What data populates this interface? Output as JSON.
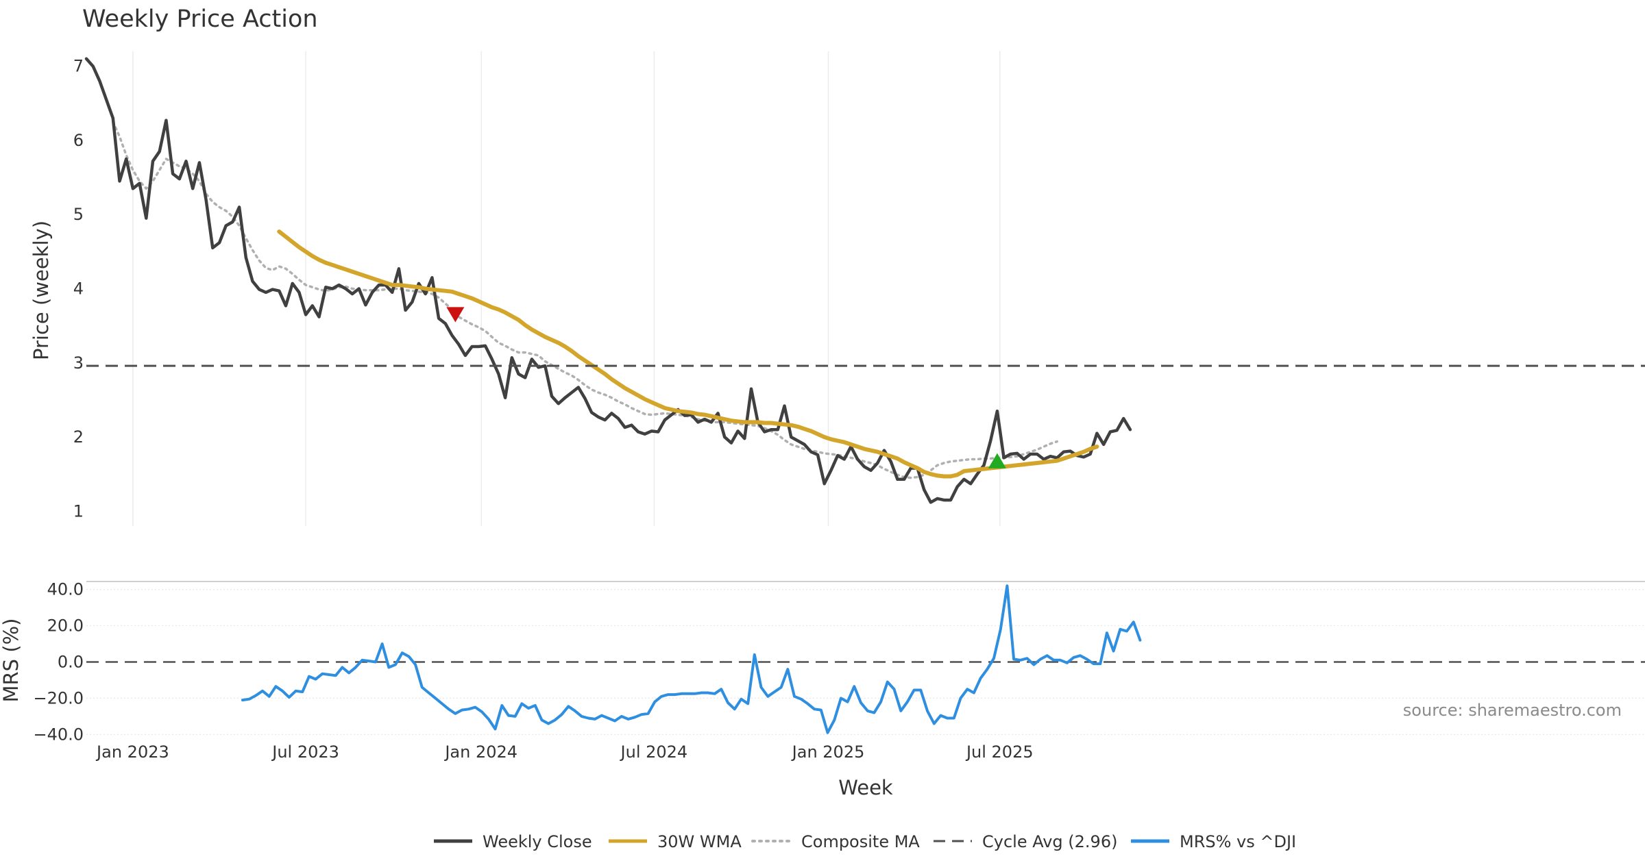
{
  "chart_data": [
    {
      "type": "line",
      "title": "Weekly Price Action",
      "xlabel": "",
      "ylabel": "Price (weekly)",
      "ylim": [
        0.8,
        7.2
      ],
      "yticks": [
        1,
        2,
        3,
        4,
        5,
        6,
        7
      ],
      "grid": true,
      "x_start": "2022-11-14",
      "x_unit": "weeks since x_start",
      "xticks": [
        {
          "label": "Jan 2023",
          "week": 7
        },
        {
          "label": "Jul 2023",
          "week": 33
        },
        {
          "label": "Jan 2024",
          "week": 59.4
        },
        {
          "label": "Jul 2024",
          "week": 85.4
        },
        {
          "label": "Jan 2025",
          "week": 111.6
        },
        {
          "label": "Jul 2025",
          "week": 137.4
        }
      ],
      "reference_line": {
        "name": "Cycle Avg (2.96)",
        "value": 2.96
      },
      "series": [
        {
          "name": "Weekly Close",
          "color": "#404040",
          "start_week": 0,
          "values": [
            7.1,
            7.0,
            6.8,
            6.55,
            6.3,
            5.45,
            5.75,
            5.35,
            5.42,
            4.95,
            5.72,
            5.85,
            6.27,
            5.55,
            5.48,
            5.72,
            5.35,
            5.7,
            5.2,
            4.55,
            4.62,
            4.85,
            4.9,
            5.1,
            4.42,
            4.1,
            3.99,
            3.95,
            3.99,
            3.97,
            3.77,
            4.07,
            3.95,
            3.65,
            3.77,
            3.62,
            4.02,
            4.0,
            4.05,
            4.0,
            3.93,
            4.0,
            3.78,
            3.95,
            4.05,
            4.05,
            3.95,
            4.27,
            3.71,
            3.82,
            4.07,
            3.93,
            4.15,
            3.6,
            3.53,
            3.37,
            3.25,
            3.1,
            3.22,
            3.22,
            3.23,
            3.05,
            2.85,
            2.53,
            3.07,
            2.85,
            2.8,
            3.05,
            2.94,
            2.96,
            2.55,
            2.45,
            2.53,
            2.6,
            2.67,
            2.52,
            2.33,
            2.27,
            2.23,
            2.32,
            2.25,
            2.13,
            2.16,
            2.07,
            2.04,
            2.08,
            2.07,
            2.23,
            2.3,
            2.37,
            2.29,
            2.3,
            2.2,
            2.24,
            2.2,
            2.32,
            2.0,
            1.92,
            2.08,
            1.98,
            2.65,
            2.2,
            2.07,
            2.1,
            2.1,
            2.42,
            2.0,
            1.95,
            1.9,
            1.8,
            1.76,
            1.37,
            1.55,
            1.75,
            1.7,
            1.87,
            1.7,
            1.6,
            1.55,
            1.65,
            1.82,
            1.67,
            1.43,
            1.43,
            1.58,
            1.58,
            1.29,
            1.12,
            1.17,
            1.15,
            1.15,
            1.33,
            1.43,
            1.37,
            1.5,
            1.62,
            1.95,
            2.35,
            1.72,
            1.77,
            1.78,
            1.7,
            1.77,
            1.77,
            1.7,
            1.74,
            1.72,
            1.8,
            1.81,
            1.75,
            1.73,
            1.77,
            2.05,
            1.9,
            2.07,
            2.09,
            2.25,
            2.1
          ]
        },
        {
          "name": "30W WMA",
          "color": "#d4a52b",
          "start_week": 29,
          "values": [
            4.77,
            4.7,
            4.63,
            4.56,
            4.5,
            4.44,
            4.39,
            4.35,
            4.32,
            4.29,
            4.26,
            4.23,
            4.2,
            4.17,
            4.14,
            4.11,
            4.08,
            4.05,
            4.05,
            4.04,
            4.03,
            4.02,
            4.0,
            3.99,
            3.98,
            3.97,
            3.96,
            3.93,
            3.9,
            3.87,
            3.83,
            3.79,
            3.75,
            3.72,
            3.68,
            3.63,
            3.58,
            3.51,
            3.45,
            3.4,
            3.35,
            3.31,
            3.27,
            3.22,
            3.16,
            3.09,
            3.03,
            2.97,
            2.91,
            2.85,
            2.78,
            2.72,
            2.66,
            2.61,
            2.56,
            2.51,
            2.47,
            2.43,
            2.39,
            2.37,
            2.35,
            2.34,
            2.33,
            2.31,
            2.3,
            2.28,
            2.26,
            2.24,
            2.22,
            2.21,
            2.2,
            2.2,
            2.2,
            2.19,
            2.19,
            2.18,
            2.17,
            2.16,
            2.14,
            2.11,
            2.08,
            2.04,
            2.0,
            1.97,
            1.95,
            1.93,
            1.9,
            1.87,
            1.84,
            1.82,
            1.8,
            1.77,
            1.74,
            1.71,
            1.66,
            1.62,
            1.58,
            1.53,
            1.5,
            1.48,
            1.47,
            1.47,
            1.49,
            1.54,
            1.55,
            1.56,
            1.57,
            1.58,
            1.59,
            1.6,
            1.61,
            1.62,
            1.63,
            1.64,
            1.65,
            1.66,
            1.67,
            1.68,
            1.71,
            1.74,
            1.77,
            1.8,
            1.84,
            1.87
          ]
        },
        {
          "name": "Composite MA",
          "color": "#b0b0b0",
          "start_week": 4,
          "values": [
            6.25,
            6.05,
            5.8,
            5.6,
            5.45,
            5.35,
            5.45,
            5.6,
            5.75,
            5.7,
            5.65,
            5.62,
            5.55,
            5.45,
            5.28,
            5.17,
            5.1,
            5.05,
            4.97,
            4.85,
            4.68,
            4.52,
            4.38,
            4.28,
            4.25,
            4.3,
            4.27,
            4.2,
            4.12,
            4.05,
            4.02,
            3.99,
            3.97,
            3.99,
            4.02,
            4.03,
            4.0,
            3.99,
            3.98,
            3.98,
            3.98,
            3.99,
            4.0,
            4.0,
            3.98,
            3.97,
            3.96,
            3.95,
            3.93,
            3.88,
            3.8,
            3.72,
            3.62,
            3.57,
            3.52,
            3.48,
            3.43,
            3.35,
            3.27,
            3.23,
            3.18,
            3.14,
            3.14,
            3.12,
            3.1,
            3.02,
            2.97,
            2.92,
            2.87,
            2.83,
            2.77,
            2.7,
            2.64,
            2.6,
            2.57,
            2.53,
            2.48,
            2.44,
            2.39,
            2.35,
            2.31,
            2.3,
            2.31,
            2.32,
            2.31,
            2.3,
            2.29,
            2.27,
            2.24,
            2.22,
            2.2,
            2.2,
            2.2,
            2.19,
            2.18,
            2.17,
            2.16,
            2.15,
            2.12,
            2.08,
            2.03,
            1.96,
            1.9,
            1.87,
            1.84,
            1.82,
            1.8,
            1.78,
            1.77,
            1.76,
            1.74,
            1.72,
            1.7,
            1.67,
            1.65,
            1.62,
            1.57,
            1.53,
            1.49,
            1.46,
            1.45,
            1.46,
            1.49,
            1.55,
            1.62,
            1.65,
            1.67,
            1.68,
            1.69,
            1.7,
            1.7,
            1.71,
            1.71,
            1.72,
            1.72,
            1.73,
            1.74,
            1.77,
            1.8,
            1.83,
            1.87,
            1.91,
            1.94
          ]
        }
      ],
      "markers": [
        {
          "type": "sell",
          "shape": "triangle-down",
          "color": "#cc1111",
          "week": 55.5,
          "value": 3.65
        },
        {
          "type": "buy",
          "shape": "triangle-up",
          "color": "#22aa22",
          "week": 137,
          "value": 1.68
        }
      ]
    },
    {
      "type": "line",
      "title": "",
      "xlabel": "Week",
      "ylabel": "MRS (%)",
      "ylim": [
        -41,
        44
      ],
      "yticks": [
        40.0,
        20.0,
        0.0,
        -20.0,
        -40.0
      ],
      "ytick_labels": [
        "40.0",
        "20.0",
        "0.0",
        "−20.0",
        "−40.0"
      ],
      "grid": true,
      "reference_line": {
        "name": "zero",
        "value": 0
      },
      "series": [
        {
          "name": "MRS% vs ^DJI",
          "color": "#2e8ee0",
          "start_week": 23.5,
          "values": [
            -21,
            -20.5,
            -18.5,
            -16,
            -19,
            -13.5,
            -16,
            -19.5,
            -16,
            -16.5,
            -8,
            -9.5,
            -6.5,
            -7,
            -7.5,
            -3,
            -6,
            -3,
            1,
            0.5,
            0,
            10,
            -3,
            -1.5,
            5,
            3,
            -1.5,
            -14,
            -17,
            -20,
            -23,
            -26,
            -28.5,
            -26.5,
            -26,
            -25,
            -27.5,
            -31.5,
            -37,
            -24,
            -29.5,
            -30,
            -23,
            -25.5,
            -24,
            -32,
            -34,
            -32,
            -29,
            -24.5,
            -27,
            -30,
            -31,
            -31.5,
            -29.5,
            -31,
            -32.5,
            -30,
            -31.5,
            -30.5,
            -29,
            -28.5,
            -22,
            -19,
            -18,
            -18,
            -17.5,
            -17.5,
            -17.5,
            -17,
            -17,
            -17.5,
            -15,
            -22.5,
            -26,
            -20.5,
            -23,
            4,
            -14,
            -19,
            -16.5,
            -14,
            -4,
            -19,
            -20.5,
            -23,
            -26,
            -26.5,
            -39,
            -32,
            -20,
            -22,
            -13.5,
            -22.5,
            -27,
            -28,
            -22,
            -11,
            -15,
            -27,
            -22,
            -15.5,
            -15.5,
            -27,
            -34,
            -29.5,
            -31,
            -31,
            -20,
            -15,
            -17,
            -9,
            -4,
            2,
            18,
            42,
            1.5,
            1,
            2,
            -1.5,
            1.5,
            3.5,
            1,
            1,
            -0.5,
            2.5,
            3.5,
            1.5,
            -1,
            -1,
            16,
            6,
            18,
            17,
            22,
            12
          ]
        }
      ],
      "annotation": "source: sharemaestro.com"
    }
  ],
  "legend": {
    "placement": "bottom-center",
    "items": [
      {
        "label": "Weekly Close",
        "color": "#404040",
        "style": "solid"
      },
      {
        "label": "30W WMA",
        "color": "#d4a52b",
        "style": "solid"
      },
      {
        "label": "Composite MA",
        "color": "#b0b0b0",
        "style": "dotted"
      },
      {
        "label": "Cycle Avg (2.96)",
        "color": "#505050",
        "style": "dashed"
      },
      {
        "label": "MRS% vs ^DJI",
        "color": "#2e8ee0",
        "style": "solid"
      }
    ]
  }
}
